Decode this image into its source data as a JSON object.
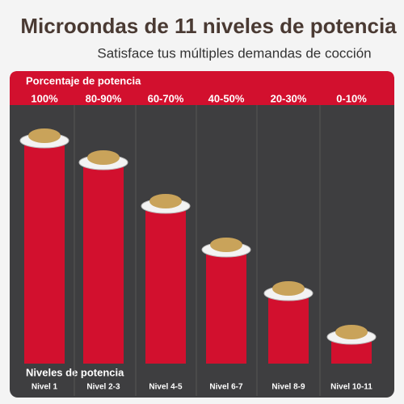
{
  "chart_data": {
    "type": "bar",
    "title": "Microondas de 11 niveles de potencia",
    "subtitle": "Satisface tus múltiples demandas de cocción",
    "header_label": "Porcentaje de potencia",
    "x_label": "Niveles de potencia",
    "categories": [
      "Nivel 1",
      "Nivel 2-3",
      "Nivel 4-5",
      "Nivel 6-7",
      "Nivel 8-9",
      "Nivel 10-11"
    ],
    "values": [
      100,
      90,
      70,
      50,
      30,
      10
    ],
    "value_labels": [
      "100%",
      "80-90%",
      "60-70%",
      "40-50%",
      "20-30%",
      "0-10%"
    ],
    "color": "#d2102e",
    "ylim": [
      0,
      100
    ]
  }
}
